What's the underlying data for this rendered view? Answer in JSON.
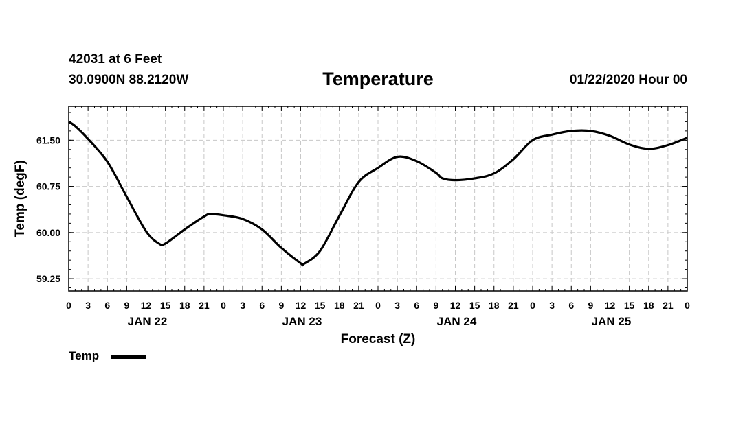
{
  "header": {
    "station": "42031 at 6 Feet",
    "coords": "30.0900N 88.2120W",
    "title": "Temperature",
    "run_time": "01/22/2020 Hour 00"
  },
  "legend": {
    "label": "Temp"
  },
  "colors": {
    "line": "#000000",
    "grid": "#c8c8c8",
    "frame": "#000000"
  },
  "chart_data": {
    "type": "line",
    "title": "Temperature",
    "xlabel": "Forecast (Z)",
    "ylabel": "Temp (degF)",
    "xlim": [
      0,
      96
    ],
    "ylim": [
      59.05,
      62.05
    ],
    "y_ticks": [
      59.25,
      60.0,
      60.75,
      61.5
    ],
    "y_tick_labels": [
      "59.25",
      "60.00",
      "60.75",
      "61.50"
    ],
    "x_ticks": [
      0,
      3,
      6,
      9,
      12,
      15,
      18,
      21,
      24,
      27,
      30,
      33,
      36,
      39,
      42,
      45,
      48,
      51,
      54,
      57,
      60,
      63,
      66,
      69,
      72,
      75,
      78,
      81,
      84,
      87,
      90,
      93,
      96
    ],
    "x_tick_labels": [
      "0",
      "3",
      "6",
      "9",
      "12",
      "15",
      "18",
      "21",
      "0",
      "3",
      "6",
      "9",
      "12",
      "15",
      "18",
      "21",
      "0",
      "3",
      "6",
      "9",
      "12",
      "15",
      "18",
      "21",
      "0",
      "3",
      "6",
      "9",
      "12",
      "15",
      "18",
      "21",
      "0"
    ],
    "day_labels": [
      {
        "x": 12,
        "label": "JAN 22"
      },
      {
        "x": 36,
        "label": "JAN 23"
      },
      {
        "x": 60,
        "label": "JAN 24"
      },
      {
        "x": 84,
        "label": "JAN 25"
      }
    ],
    "grid": true,
    "series": [
      {
        "name": "Temp",
        "x": [
          0,
          1,
          3,
          6,
          9,
          12,
          14,
          15,
          18,
          21,
          22,
          24,
          27,
          30,
          33,
          36,
          36.5,
          39,
          42,
          45,
          48,
          51,
          54,
          57,
          58,
          60,
          63,
          66,
          69,
          72,
          75,
          78,
          81,
          84,
          87,
          90,
          93,
          96
        ],
        "y": [
          61.8,
          61.73,
          61.52,
          61.15,
          60.58,
          60.02,
          59.82,
          59.82,
          60.05,
          60.26,
          60.3,
          60.28,
          60.22,
          60.05,
          59.75,
          59.5,
          59.49,
          59.7,
          60.27,
          60.82,
          61.05,
          61.23,
          61.16,
          60.97,
          60.88,
          60.85,
          60.88,
          60.96,
          61.19,
          61.5,
          61.59,
          61.65,
          61.65,
          61.57,
          61.43,
          61.36,
          61.42,
          61.54
        ]
      }
    ]
  }
}
